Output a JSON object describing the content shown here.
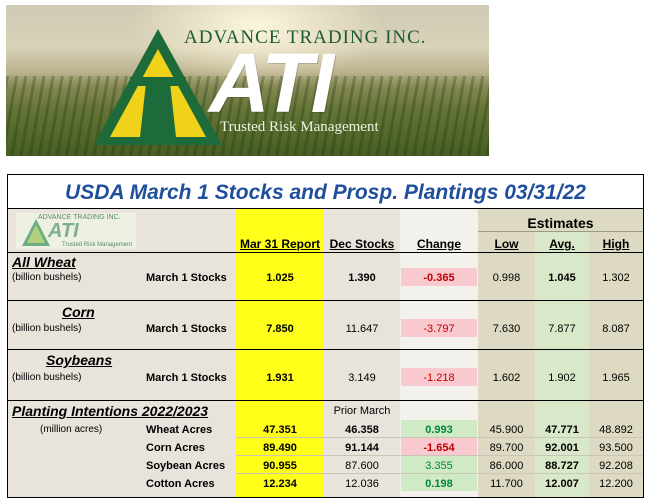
{
  "banner": {
    "company": "ADVANCE TRADING INC.",
    "logo_text": "ATI",
    "tagline": "Trusted Risk Management"
  },
  "report": {
    "title": "USDA March 1 Stocks and Prosp. Plantings 03/31/22",
    "mini_logo": {
      "company": "ADVANCE TRADING INC.",
      "logo_text": "ATI",
      "tagline": "Trusted Risk Management"
    },
    "estimates_header": "Estimates",
    "columns": {
      "report": "Mar 31 Report",
      "dec": "Dec Stocks",
      "change": "Change",
      "low": "Low",
      "avg": "Avg.",
      "high": "High"
    },
    "sections": [
      {
        "name": "All Wheat",
        "unit": "(billion bushels)",
        "label": "March 1 Stocks",
        "report": "1.025",
        "dec": "1.390",
        "change": "-0.365",
        "low": "0.998",
        "avg": "1.045",
        "high": "1.302"
      },
      {
        "name": "Corn",
        "unit": "(billion bushels)",
        "label": "March 1 Stocks",
        "report": "7.850",
        "dec": "11.647",
        "change": "-3.797",
        "low": "7.630",
        "avg": "7.877",
        "high": "8.087"
      },
      {
        "name": "Soybeans",
        "unit": "(billion bushels)",
        "label": "March 1 Stocks",
        "report": "1.931",
        "dec": "3.149",
        "change": "-1.218",
        "low": "1.602",
        "avg": "1.902",
        "high": "1.965"
      }
    ],
    "plantings": {
      "title": "Planting Intentions 2022/2023",
      "prior_header": "Prior March",
      "unit": "(million acres)",
      "rows": [
        {
          "label": "Wheat Acres",
          "report": "47.351",
          "prior": "46.358",
          "change": "0.993",
          "low": "45.900",
          "avg": "47.771",
          "high": "48.892",
          "sign": "pos"
        },
        {
          "label": "Corn Acres",
          "report": "89.490",
          "prior": "91.144",
          "change": "-1.654",
          "low": "89.700",
          "avg": "92.001",
          "high": "93.500",
          "sign": "neg"
        },
        {
          "label": "Soybean Acres",
          "report": "90.955",
          "prior": "87.600",
          "change": "3.355",
          "low": "86.000",
          "avg": "88.727",
          "high": "92.208",
          "sign": "pos"
        },
        {
          "label": "Cotton Acres",
          "report": "12.234",
          "prior": "12.036",
          "change": "0.198",
          "low": "11.700",
          "avg": "12.007",
          "high": "12.200",
          "sign": "pos"
        }
      ]
    },
    "colors": {
      "title_blue": "#1f4e9c",
      "report_yellow": "#ffff1a",
      "negative_bg": "#f8c9cf",
      "positive_bg": "#cfeac4",
      "negative_text": "#c00000",
      "positive_text": "#00863a",
      "estimates_bg": "#ddd9c3"
    }
  }
}
